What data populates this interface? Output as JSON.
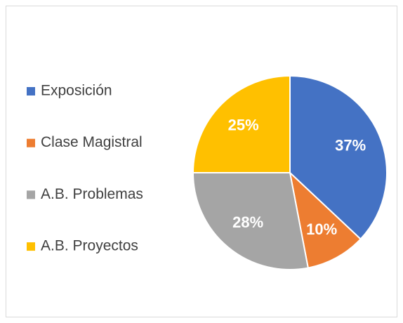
{
  "chart_data": {
    "type": "pie",
    "categories": [
      "Exposición",
      "Clase Magistral",
      "A.B. Problemas",
      "A.B. Proyectos"
    ],
    "values": [
      37,
      10,
      28,
      25
    ],
    "value_labels": [
      "37%",
      "10%",
      "28%",
      "25%"
    ],
    "colors": [
      "#4472c4",
      "#ed7d31",
      "#a5a5a5",
      "#ffc000"
    ],
    "legend": "left"
  }
}
